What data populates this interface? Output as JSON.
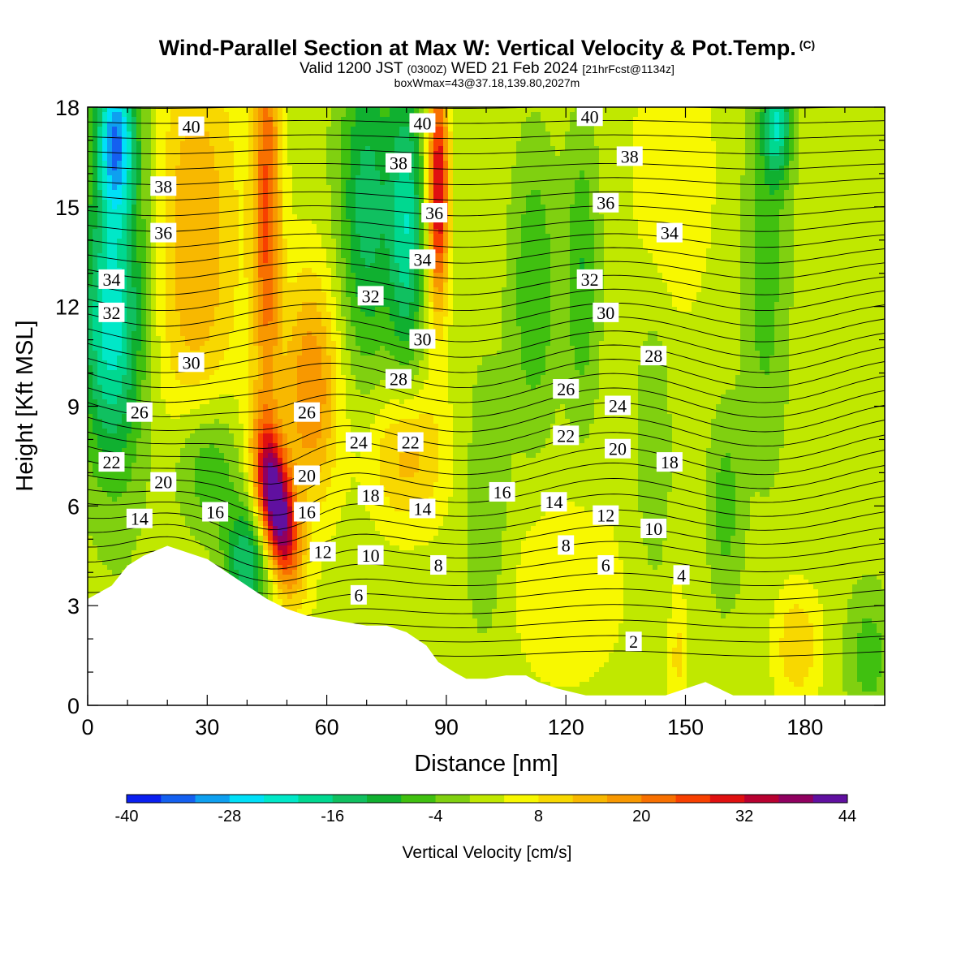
{
  "title": {
    "main": "Wind-Parallel Section at Max W: Vertical Velocity & Pot.Temp.",
    "copyright": "(C)",
    "valid_prefix": "Valid 1200 JST",
    "valid_utc": "(0300Z)",
    "valid_date": "WED 21 Feb 2024",
    "forecast": "[21hrFcst@1134z]",
    "boxmax": "boxWmax=43@37.18,139.80,2027m"
  },
  "chart_data": {
    "type": "heatmap",
    "xlabel": "Distance [nm]",
    "ylabel": "Height [Kft MSL]",
    "xlim": [
      0,
      200
    ],
    "ylim": [
      0,
      18
    ],
    "x_ticks": [
      0,
      30,
      60,
      90,
      120,
      150,
      180
    ],
    "y_ticks": [
      0,
      3,
      6,
      9,
      12,
      15,
      18
    ],
    "colorbar": {
      "label": "Vertical Velocity [cm/s]",
      "ticks": [
        -40,
        -28,
        -16,
        -4,
        8,
        20,
        32,
        44
      ],
      "bins": [
        -40,
        -36,
        -32,
        -28,
        -24,
        -20,
        -16,
        -12,
        -8,
        -4,
        0,
        4,
        8,
        12,
        16,
        20,
        24,
        28,
        32,
        36,
        40,
        44
      ],
      "colors": [
        "#0a1ff0",
        "#1460f0",
        "#0ea0f0",
        "#00e0f8",
        "#00e8c8",
        "#00d890",
        "#10c060",
        "#10b030",
        "#40c010",
        "#80d010",
        "#c0e800",
        "#f8f800",
        "#f8d800",
        "#f8b800",
        "#f89800",
        "#f87000",
        "#f84000",
        "#e01010",
        "#b80030",
        "#900060",
        "#6010a0"
      ]
    },
    "terrain_profile": {
      "x": [
        0,
        6,
        10,
        14,
        20,
        30,
        35,
        40,
        45,
        50,
        55,
        60,
        65,
        70,
        75,
        80,
        85,
        88,
        92,
        95,
        100,
        105,
        110,
        113,
        118,
        125,
        135,
        145,
        150,
        155,
        162,
        170,
        180,
        190,
        200
      ],
      "height": [
        3.2,
        3.6,
        4.2,
        4.5,
        4.8,
        4.4,
        4.0,
        3.6,
        3.2,
        2.9,
        2.7,
        2.6,
        2.5,
        2.4,
        2.4,
        2.2,
        1.8,
        1.3,
        1.0,
        0.8,
        0.8,
        0.9,
        0.9,
        0.7,
        0.5,
        0.3,
        0.3,
        0.3,
        0.5,
        0.7,
        0.3,
        0.3,
        0.3,
        0.3,
        0.3
      ]
    },
    "potential_temperature_contour_labels": [
      {
        "value": 40,
        "x": 26,
        "y": 17.4
      },
      {
        "value": 40,
        "x": 84,
        "y": 17.5
      },
      {
        "value": 40,
        "x": 126,
        "y": 17.7
      },
      {
        "value": 38,
        "x": 19,
        "y": 15.6
      },
      {
        "value": 38,
        "x": 78,
        "y": 16.3
      },
      {
        "value": 38,
        "x": 136,
        "y": 16.5
      },
      {
        "value": 36,
        "x": 19,
        "y": 14.2
      },
      {
        "value": 36,
        "x": 87,
        "y": 14.8
      },
      {
        "value": 36,
        "x": 130,
        "y": 15.1
      },
      {
        "value": 34,
        "x": 6,
        "y": 12.8
      },
      {
        "value": 34,
        "x": 84,
        "y": 13.4
      },
      {
        "value": 34,
        "x": 146,
        "y": 14.2
      },
      {
        "value": 32,
        "x": 6,
        "y": 11.8
      },
      {
        "value": 32,
        "x": 71,
        "y": 12.3
      },
      {
        "value": 32,
        "x": 126,
        "y": 12.8
      },
      {
        "value": 30,
        "x": 26,
        "y": 10.3
      },
      {
        "value": 30,
        "x": 84,
        "y": 11.0
      },
      {
        "value": 30,
        "x": 130,
        "y": 11.8
      },
      {
        "value": 28,
        "x": 78,
        "y": 9.8
      },
      {
        "value": 28,
        "x": 142,
        "y": 10.5
      },
      {
        "value": 26,
        "x": 13,
        "y": 8.8
      },
      {
        "value": 26,
        "x": 55,
        "y": 8.8
      },
      {
        "value": 26,
        "x": 120,
        "y": 9.5
      },
      {
        "value": 24,
        "x": 68,
        "y": 7.9
      },
      {
        "value": 24,
        "x": 133,
        "y": 9.0
      },
      {
        "value": 22,
        "x": 6,
        "y": 7.3
      },
      {
        "value": 22,
        "x": 81,
        "y": 7.9
      },
      {
        "value": 22,
        "x": 120,
        "y": 8.1
      },
      {
        "value": 20,
        "x": 19,
        "y": 6.7
      },
      {
        "value": 20,
        "x": 55,
        "y": 6.9
      },
      {
        "value": 20,
        "x": 133,
        "y": 7.7
      },
      {
        "value": 18,
        "x": 71,
        "y": 6.3
      },
      {
        "value": 18,
        "x": 146,
        "y": 7.3
      },
      {
        "value": 16,
        "x": 32,
        "y": 5.8
      },
      {
        "value": 16,
        "x": 55,
        "y": 5.8
      },
      {
        "value": 16,
        "x": 104,
        "y": 6.4
      },
      {
        "value": 14,
        "x": 13,
        "y": 5.6
      },
      {
        "value": 14,
        "x": 84,
        "y": 5.9
      },
      {
        "value": 14,
        "x": 117,
        "y": 6.1
      },
      {
        "value": 12,
        "x": 59,
        "y": 4.6
      },
      {
        "value": 12,
        "x": 130,
        "y": 5.7
      },
      {
        "value": 10,
        "x": 71,
        "y": 4.5
      },
      {
        "value": 10,
        "x": 142,
        "y": 5.3
      },
      {
        "value": 8,
        "x": 88,
        "y": 4.2
      },
      {
        "value": 8,
        "x": 120,
        "y": 4.8
      },
      {
        "value": 6,
        "x": 68,
        "y": 3.3
      },
      {
        "value": 6,
        "x": 130,
        "y": 4.2
      },
      {
        "value": 4,
        "x": 149,
        "y": 3.9
      },
      {
        "value": 2,
        "x": 137,
        "y": 1.9
      }
    ]
  }
}
